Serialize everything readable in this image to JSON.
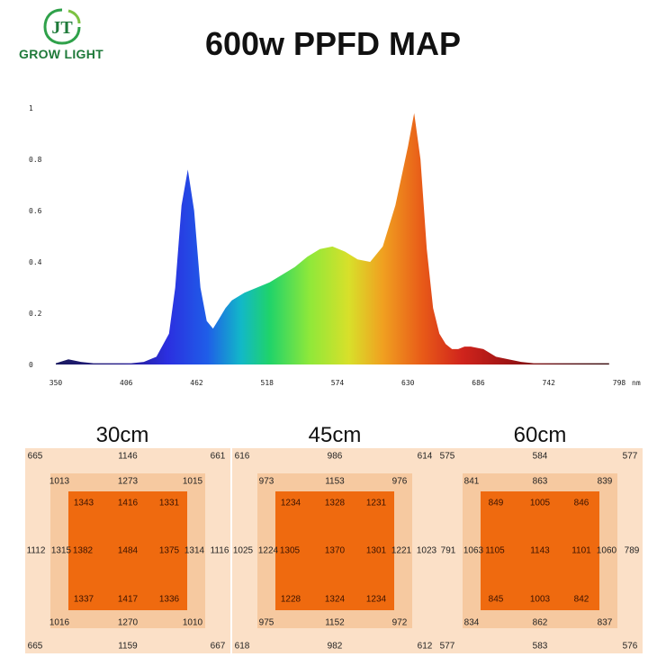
{
  "logo": {
    "mark": "JT",
    "text": "GROW LIGHT"
  },
  "title": "600w PPFD MAP",
  "chart_data": [
    {
      "type": "area",
      "title": "",
      "xlabel": "",
      "ylabel": "",
      "x_unit": "nm",
      "xlim": [
        350,
        798
      ],
      "ylim": [
        0,
        1
      ],
      "x_ticks": [
        "350",
        "406",
        "462",
        "518",
        "574",
        "630",
        "686",
        "742",
        "798"
      ],
      "y_ticks": [
        "0",
        "0.2",
        "0.4",
        "0.6",
        "0.8",
        "1"
      ],
      "x": [
        350,
        360,
        370,
        380,
        390,
        400,
        410,
        420,
        430,
        440,
        445,
        450,
        455,
        460,
        465,
        470,
        475,
        480,
        485,
        490,
        500,
        510,
        520,
        530,
        540,
        550,
        560,
        570,
        580,
        590,
        600,
        610,
        620,
        630,
        635,
        640,
        645,
        650,
        655,
        660,
        665,
        670,
        675,
        680,
        690,
        700,
        710,
        720,
        730,
        740,
        750,
        760,
        770,
        780,
        790
      ],
      "y": [
        0.005,
        0.02,
        0.01,
        0.005,
        0.005,
        0.005,
        0.005,
        0.01,
        0.03,
        0.12,
        0.3,
        0.62,
        0.76,
        0.6,
        0.3,
        0.17,
        0.14,
        0.18,
        0.22,
        0.25,
        0.28,
        0.3,
        0.32,
        0.35,
        0.38,
        0.42,
        0.45,
        0.46,
        0.44,
        0.41,
        0.4,
        0.46,
        0.62,
        0.85,
        0.98,
        0.8,
        0.45,
        0.22,
        0.12,
        0.08,
        0.06,
        0.06,
        0.07,
        0.07,
        0.06,
        0.03,
        0.02,
        0.01,
        0.005,
        0.005,
        0.005,
        0.005,
        0.005,
        0.005,
        0.005
      ]
    },
    {
      "type": "heatmap",
      "title": "30cm",
      "grid": {
        "outer": {
          "tl": 665,
          "t": 1146,
          "tr": 661,
          "l": 1112,
          "r": 1116,
          "bl": 665,
          "b": 1159,
          "br": 667
        },
        "mid": {
          "tl": 1013,
          "t": 1273,
          "tr": 1015,
          "l": 1315,
          "r": 1314,
          "bl": 1016,
          "b": 1270,
          "br": 1010
        },
        "inner": {
          "tl": 1343,
          "t": 1416,
          "tr": 1331,
          "l": 1382,
          "c": 1484,
          "r": 1375,
          "bl": 1337,
          "b": 1417,
          "br": 1336
        }
      }
    },
    {
      "type": "heatmap",
      "title": "45cm",
      "grid": {
        "outer": {
          "tl": 616,
          "t": 986,
          "tr": 614,
          "l": 1025,
          "r": 1023,
          "bl": 618,
          "b": 982,
          "br": 612
        },
        "mid": {
          "tl": 973,
          "t": 1153,
          "tr": 976,
          "l": 1224,
          "r": 1221,
          "bl": 975,
          "b": 1152,
          "br": 972
        },
        "inner": {
          "tl": 1234,
          "t": 1328,
          "tr": 1231,
          "l": 1305,
          "c": 1370,
          "r": 1301,
          "bl": 1228,
          "b": 1324,
          "br": 1234
        }
      }
    },
    {
      "type": "heatmap",
      "title": "60cm",
      "grid": {
        "outer": {
          "tl": 575,
          "t": 584,
          "tr": 577,
          "l": 791,
          "r": 789,
          "bl": 577,
          "b": 583,
          "br": 576
        },
        "mid": {
          "tl": 841,
          "t": 863,
          "tr": 839,
          "l": 1063,
          "r": 1060,
          "bl": 834,
          "b": 862,
          "br": 837
        },
        "inner": {
          "tl": 849,
          "t": 1005,
          "tr": 846,
          "l": 1105,
          "c": 1143,
          "r": 1101,
          "bl": 845,
          "b": 1003,
          "br": 842
        }
      }
    }
  ]
}
